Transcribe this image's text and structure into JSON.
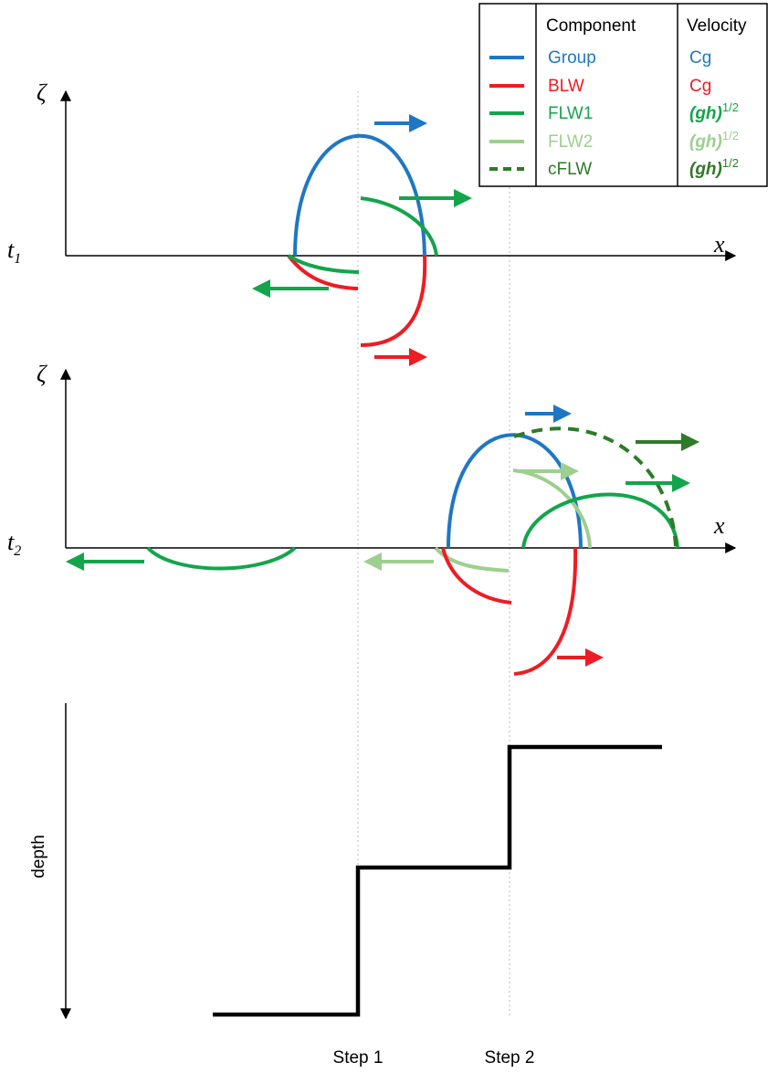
{
  "legend": {
    "header_component": "Component",
    "header_velocity": "Velocity",
    "rows": [
      {
        "component": "Group",
        "velocity_main": "Cg",
        "velocity_sup": "",
        "color": "#1f77c4",
        "style": "solid"
      },
      {
        "component": "BLW",
        "velocity_main": "Cg",
        "velocity_sup": "",
        "color": "#ee1c24",
        "style": "solid"
      },
      {
        "component": "FLW1",
        "velocity_main": "(gh)",
        "velocity_sup": "1/2",
        "color": "#13a54b",
        "style": "solid"
      },
      {
        "component": "FLW2",
        "velocity_main": "(gh)",
        "velocity_sup": "1/2",
        "color": "#9dcf8f",
        "style": "solid"
      },
      {
        "component": "cFLW",
        "velocity_main": "(gh)",
        "velocity_sup": "1/2",
        "color": "#2f7a28",
        "style": "dashed"
      }
    ]
  },
  "panel_t1": {
    "time_main": "t",
    "time_sub": "1",
    "y_axis": "ζ",
    "x_axis": "x"
  },
  "panel_t2": {
    "time_main": "t",
    "time_sub": "2",
    "y_axis": "ζ",
    "x_axis": "x"
  },
  "depth_panel": {
    "y_axis": "depth",
    "step1": "Step 1",
    "step2": "Step 2"
  }
}
